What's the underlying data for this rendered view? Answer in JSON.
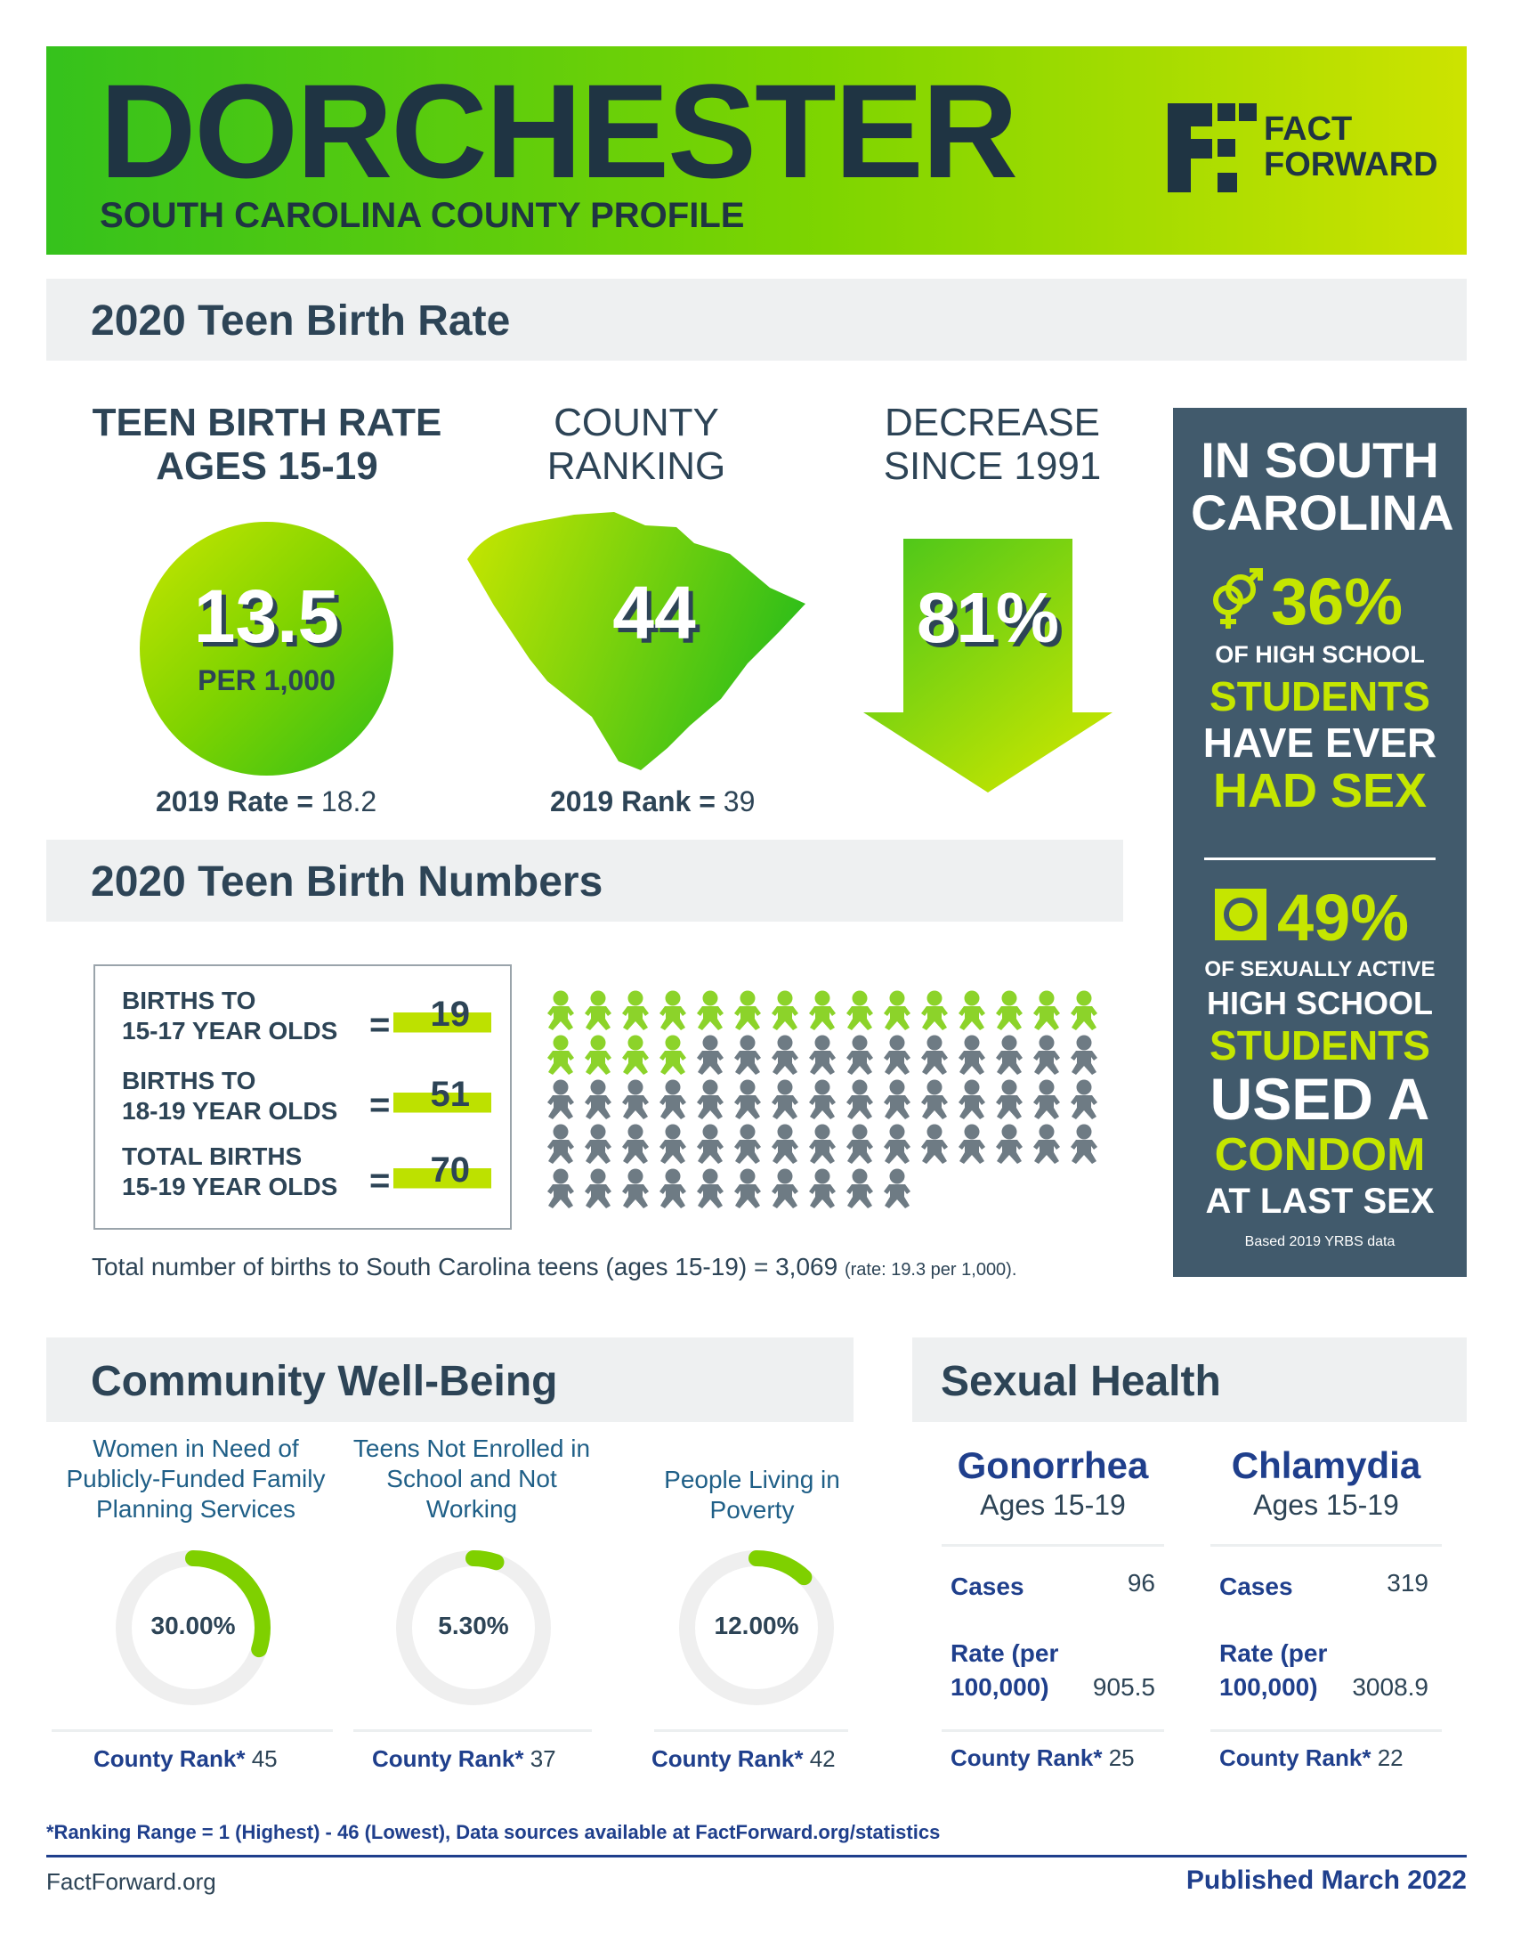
{
  "header": {
    "title": "DORCHESTER",
    "subtitle": "SOUTH CAROLINA COUNTY PROFILE",
    "logo_line1": "FACT",
    "logo_line2": "FORWARD"
  },
  "teen_birth_rate": {
    "section_title": "2020 Teen Birth Rate",
    "rate": {
      "heading": "TEEN BIRTH RATE AGES 15-19",
      "value": "13.5",
      "unit": "PER 1,000",
      "prev_label": "2019 Rate =",
      "prev_value": "18.2"
    },
    "ranking": {
      "heading": "COUNTY RANKING",
      "value": "44",
      "prev_label": "2019 Rank =",
      "prev_value": "39"
    },
    "decrease": {
      "heading": "DECREASE SINCE 1991",
      "value": "81%"
    }
  },
  "in_sc": {
    "heading": "IN SOUTH CAROLINA",
    "stat1": {
      "icon": "gender-icon",
      "value": "36%",
      "line1": "OF HIGH SCHOOL",
      "line2": "STUDENTS",
      "line3": "HAVE EVER",
      "line4": "HAD SEX"
    },
    "stat2": {
      "icon": "condom-icon",
      "value": "49%",
      "line1": "OF SEXUALLY ACTIVE",
      "line2": "HIGH SCHOOL",
      "line3": "STUDENTS",
      "line4": "USED A",
      "line5": "CONDOM",
      "line6": "AT LAST SEX"
    },
    "note": "Based 2019 YRBS data"
  },
  "teen_birth_numbers": {
    "section_title": "2020 Teen Birth Numbers",
    "rows": [
      {
        "label1": "BIRTHS TO",
        "label2": "15-17 YEAR OLDS",
        "eq": "=",
        "value": "19"
      },
      {
        "label1": "BIRTHS TO",
        "label2": "18-19 YEAR OLDS",
        "eq": "=",
        "value": "51"
      },
      {
        "label1": "TOTAL BIRTHS",
        "label2": "15-19 YEAR OLDS",
        "eq": "=",
        "value": "70"
      }
    ],
    "pictogram": {
      "total": 70,
      "highlighted": 19,
      "highlight_color": "#8cd32a",
      "base_color": "#6e7b84"
    },
    "total_note": "Total number of births to South Carolina teens (ages 15-19) = 3,069",
    "total_note_small": "(rate: 19.3 per 1,000)."
  },
  "community": {
    "section_title": "Community Well-Being",
    "metrics": [
      {
        "title": "Women in Need of Publicly-Funded Family Planning Services",
        "value": "30.00%",
        "fraction": 0.3,
        "rank_label": "County Rank*",
        "rank": "45"
      },
      {
        "title": "Teens Not Enrolled in School and Not Working",
        "value": "5.30%",
        "fraction": 0.053,
        "rank_label": "County Rank*",
        "rank": "37"
      },
      {
        "title": "People Living in Poverty",
        "value": "12.00%",
        "fraction": 0.12,
        "rank_label": "County Rank*",
        "rank": "42"
      }
    ],
    "accent": "#7fd000",
    "track": "#efefef"
  },
  "sexual_health": {
    "section_title": "Sexual Health",
    "items": [
      {
        "title": "Gonorrhea",
        "sub": "Ages 15-19",
        "cases_label": "Cases",
        "cases": "96",
        "rate_label1": "Rate (per",
        "rate_label2": "100,000)",
        "rate": "905.5",
        "rank_label": "County Rank*",
        "rank": "25"
      },
      {
        "title": "Chlamydia",
        "sub": "Ages 15-19",
        "cases_label": "Cases",
        "cases": "319",
        "rate_label1": "Rate (per",
        "rate_label2": "100,000)",
        "rate": "3008.9",
        "rank_label": "County Rank*",
        "rank": "22"
      }
    ]
  },
  "footer": {
    "footnote": "*Ranking Range = 1 (Highest) - 46 (Lowest), Data sources available at FactForward.org/statistics",
    "site": "FactForward.org",
    "published": "Published March 2022"
  }
}
